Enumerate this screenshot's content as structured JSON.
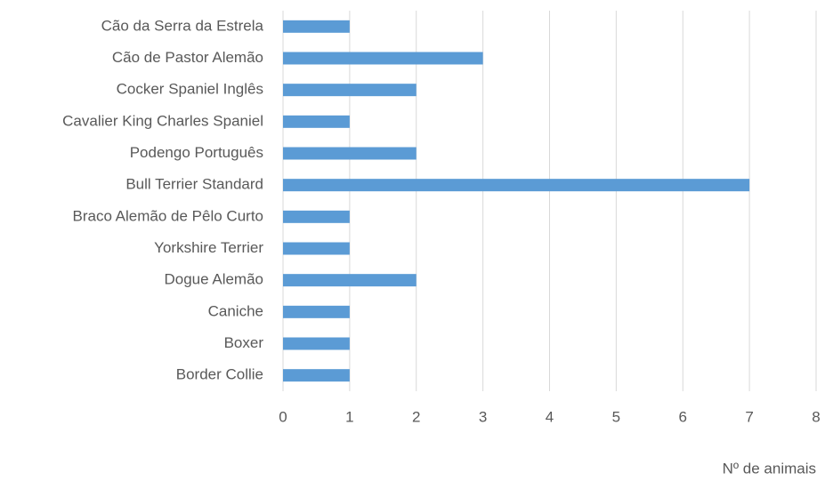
{
  "chart_data": {
    "type": "barh",
    "categories": [
      "Cão da Serra da Estrela",
      "Cão de Pastor Alemão",
      "Cocker Spaniel Inglês",
      "Cavalier King Charles Spaniel",
      "Podengo Português",
      "Bull Terrier Standard",
      "Braco Alemão de Pêlo Curto",
      "Yorkshire Terrier",
      "Dogue Alemão",
      "Caniche",
      "Boxer",
      "Border Collie"
    ],
    "values": [
      1,
      3,
      2,
      1,
      2,
      7,
      1,
      1,
      2,
      1,
      1,
      1
    ],
    "color": "#5b9bd5",
    "xlabel": "Nº de animais",
    "xlim": [
      0,
      8
    ],
    "xticks": [
      0,
      1,
      2,
      3,
      4,
      5,
      6,
      7,
      8
    ],
    "grid": true
  }
}
